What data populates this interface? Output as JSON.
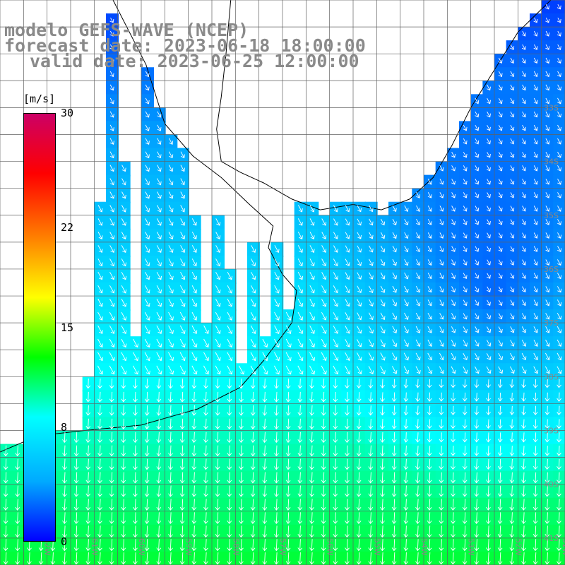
{
  "title": {
    "line1": "modelo GEFS-WAVE (NCEP)",
    "line2": "forecast date: 2023-06-18 18:00:00",
    "line3": "valid date: 2023-06-25 12:00:00"
  },
  "colorbar": {
    "units": "[m/s]",
    "ticks": [
      "30",
      "22",
      "15",
      "8",
      "0"
    ],
    "tick_values": [
      30,
      22,
      15,
      8,
      0
    ],
    "range": [
      0,
      30
    ],
    "stops": [
      "#0000ff",
      "#00aaff",
      "#00ffff",
      "#00ff00",
      "#ffff00",
      "#ff8000",
      "#ff0000",
      "#cc0066"
    ]
  },
  "map": {
    "lat_labels": [
      "33S",
      "34S",
      "35S",
      "36S",
      "37S",
      "38S",
      "39S",
      "40S",
      "41S"
    ],
    "lon_labels": [
      "62W",
      "61W",
      "60W",
      "59W",
      "58W",
      "57W",
      "56W",
      "55W",
      "54W",
      "53W",
      "52W",
      "51W"
    ],
    "lon_range": [
      -63,
      -51
    ],
    "lat_range": [
      -41.5,
      -31
    ],
    "colors": {
      "grid": "#606060",
      "land": "#ffffff",
      "coast": "#000000",
      "arrows": "#ffffff",
      "label": "#8a8a8a"
    }
  }
}
